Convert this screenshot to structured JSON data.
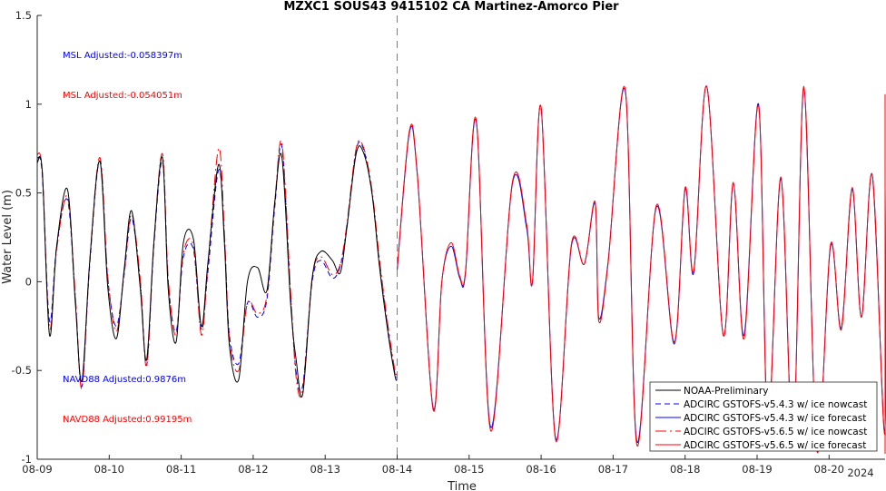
{
  "chart_data": {
    "type": "line",
    "title": "MZXC1 SOUS43 9415102 CA Martinez-Amorco Pier",
    "xlabel": "Time",
    "ylabel": "Water Level (m)",
    "year_label": "2024",
    "xlim": [
      "08-09",
      "08-20 +0.9 day"
    ],
    "ylim": [
      -1,
      1.5
    ],
    "x_ticks": [
      "08-09",
      "08-10",
      "08-11",
      "08-12",
      "08-13",
      "08-14",
      "08-15",
      "08-16",
      "08-17",
      "08-18",
      "08-19",
      "08-20"
    ],
    "y_ticks": [
      "-1",
      "-0.5",
      "0",
      "0.5",
      "1",
      "1.5"
    ],
    "nowcast_forecast_boundary": "08-14",
    "annotations": [
      {
        "text": "MSL Adjusted:-0.058397m",
        "color": "#0000ff"
      },
      {
        "text": "MSL Adjusted:-0.054051m",
        "color": "#ff0000"
      },
      {
        "text": "NAVD88 Adjusted:0.9876m",
        "color": "#0000ff"
      },
      {
        "text": "NAVD88 Adjusted:0.99195m",
        "color": "#ff0000"
      }
    ],
    "legend_placement": "bottom-right",
    "series": [
      {
        "name": "NOAA-Preliminary",
        "color": "#000000",
        "dash": "solid",
        "days": [
          0.0,
          0.07,
          0.17,
          0.27,
          0.42,
          0.53,
          0.62,
          0.73,
          0.87,
          0.98,
          1.1,
          1.21,
          1.31,
          1.43,
          1.52,
          1.62,
          1.74,
          1.82,
          1.93,
          2.03,
          2.17,
          2.28,
          2.37,
          2.52,
          2.6,
          2.67,
          2.8,
          2.92,
          3.06,
          3.19,
          3.3,
          3.4,
          3.52,
          3.6,
          3.69,
          3.82,
          3.94,
          4.1,
          4.21,
          4.3,
          4.43,
          4.53,
          4.65,
          4.75,
          4.87,
          4.97,
          5.0
        ],
        "values": [
          0.67,
          0.62,
          -0.3,
          0.2,
          0.52,
          -0.12,
          -0.56,
          0.12,
          0.68,
          -0.03,
          -0.32,
          0.08,
          0.4,
          -0.03,
          -0.44,
          0.22,
          0.7,
          -0.04,
          -0.34,
          0.22,
          0.24,
          -0.25,
          0.1,
          0.66,
          0.22,
          -0.36,
          -0.55,
          0.0,
          0.08,
          -0.05,
          0.45,
          0.7,
          -0.12,
          -0.45,
          -0.63,
          0.02,
          0.17,
          0.12,
          0.05,
          0.3,
          0.72,
          0.73,
          0.5,
          0.1,
          -0.28,
          -0.53,
          -0.55
        ]
      },
      {
        "name": "ADCIRC GSTOFS-v5.4.3 w/ ice nowcast",
        "color": "#0000ff",
        "dash": "6 4",
        "days": [
          0.0,
          0.07,
          0.17,
          0.27,
          0.42,
          0.53,
          0.62,
          0.73,
          0.87,
          0.98,
          1.1,
          1.21,
          1.31,
          1.43,
          1.52,
          1.62,
          1.74,
          1.82,
          1.93,
          2.03,
          2.17,
          2.28,
          2.37,
          2.52,
          2.6,
          2.67,
          2.8,
          2.92,
          3.06,
          3.19,
          3.3,
          3.4,
          3.52,
          3.6,
          3.69,
          3.82,
          3.94,
          4.1,
          4.21,
          4.3,
          4.43,
          4.53,
          4.65,
          4.75,
          4.87,
          4.97,
          5.0
        ],
        "values": [
          0.7,
          0.6,
          -0.22,
          0.2,
          0.46,
          -0.1,
          -0.59,
          0.1,
          0.68,
          0.02,
          -0.25,
          0.05,
          0.36,
          0.0,
          -0.47,
          0.2,
          0.68,
          0.0,
          -0.28,
          0.14,
          0.18,
          -0.27,
          0.05,
          0.63,
          0.25,
          -0.3,
          -0.46,
          -0.12,
          -0.2,
          -0.1,
          0.42,
          0.76,
          -0.08,
          -0.52,
          -0.58,
          0.0,
          0.12,
          0.02,
          0.09,
          0.3,
          0.74,
          0.75,
          0.5,
          0.12,
          -0.26,
          -0.52,
          -0.53
        ]
      },
      {
        "name": "ADCIRC GSTOFS-v5.4.3 w/ ice forecast",
        "color": "#0000ff",
        "dash": "solid",
        "days": [
          5.0,
          5.17,
          5.28,
          5.5,
          5.62,
          5.75,
          5.87,
          5.95,
          6.1,
          6.3,
          6.6,
          6.8,
          6.88,
          7.0,
          7.2,
          7.42,
          7.6,
          7.75,
          7.8,
          7.93,
          8.17,
          8.33,
          8.6,
          8.85,
          9.0,
          9.12,
          9.3,
          9.53,
          9.67,
          9.82,
          10.02,
          10.15,
          10.33,
          10.5,
          10.65,
          10.83,
          11.02,
          11.17,
          11.32,
          11.45,
          11.6,
          11.77,
          11.92,
          12.1,
          12.2,
          12.4,
          12.45
        ],
        "values": [
          0.06,
          0.84,
          0.6,
          -0.71,
          0.0,
          0.2,
          0.02,
          0.05,
          0.9,
          -0.82,
          0.55,
          0.3,
          0.0,
          0.98,
          -0.88,
          0.2,
          0.1,
          0.44,
          -0.2,
          0.11,
          1.07,
          -0.9,
          0.42,
          -0.35,
          0.52,
          0.05,
          1.1,
          -0.3,
          0.55,
          -0.3,
          1.0,
          -0.8,
          0.58,
          -0.9,
          1.09,
          -0.94,
          0.2,
          -0.26,
          0.52,
          -0.2,
          0.6,
          -0.85,
          0.55,
          -0.38,
          1.04,
          -0.88,
          -0.5
        ]
      },
      {
        "name": "ADCIRC GSTOFS-v5.6.5 w/ ice nowcast",
        "color": "#ff0000",
        "dash": "12 4 2 4",
        "days": [
          0.0,
          0.07,
          0.17,
          0.27,
          0.42,
          0.53,
          0.62,
          0.73,
          0.87,
          0.98,
          1.1,
          1.21,
          1.31,
          1.43,
          1.52,
          1.62,
          1.74,
          1.82,
          1.93,
          2.03,
          2.17,
          2.28,
          2.37,
          2.52,
          2.6,
          2.67,
          2.8,
          2.92,
          3.06,
          3.19,
          3.3,
          3.4,
          3.52,
          3.6,
          3.69,
          3.82,
          3.94,
          4.1,
          4.21,
          4.3,
          4.43,
          4.53,
          4.65,
          4.75,
          4.87,
          4.97,
          5.0
        ],
        "values": [
          0.72,
          0.62,
          -0.26,
          0.18,
          0.48,
          -0.08,
          -0.6,
          0.12,
          0.7,
          0.03,
          -0.28,
          0.06,
          0.38,
          0.02,
          -0.48,
          0.22,
          0.72,
          0.02,
          -0.3,
          0.16,
          0.2,
          -0.3,
          0.08,
          0.75,
          0.28,
          -0.32,
          -0.5,
          -0.12,
          -0.18,
          -0.08,
          0.45,
          0.78,
          -0.06,
          -0.55,
          -0.6,
          0.02,
          0.14,
          0.04,
          0.1,
          0.32,
          0.75,
          0.76,
          0.52,
          0.14,
          -0.24,
          -0.5,
          -0.51
        ]
      },
      {
        "name": "ADCIRC GSTOFS-v5.6.5 w/ ice forecast",
        "color": "#ff0000",
        "dash": "solid",
        "days": [
          5.0,
          5.17,
          5.28,
          5.5,
          5.62,
          5.75,
          5.87,
          5.95,
          6.1,
          6.3,
          6.6,
          6.8,
          6.88,
          7.0,
          7.2,
          7.42,
          7.6,
          7.75,
          7.8,
          7.93,
          8.17,
          8.33,
          8.6,
          8.85,
          9.0,
          9.12,
          9.3,
          9.53,
          9.67,
          9.82,
          10.02,
          10.15,
          10.33,
          10.5,
          10.65,
          10.83,
          11.02,
          11.17,
          11.32,
          11.45,
          11.6,
          11.77,
          11.92,
          12.1,
          12.2,
          12.4,
          12.45
        ],
        "values": [
          0.07,
          0.85,
          0.61,
          -0.72,
          0.0,
          0.22,
          0.03,
          0.06,
          0.91,
          -0.84,
          0.56,
          0.32,
          0.0,
          0.98,
          -0.89,
          0.21,
          0.1,
          0.45,
          -0.22,
          0.1,
          1.08,
          -0.92,
          0.43,
          -0.34,
          0.53,
          0.06,
          1.1,
          -0.3,
          0.56,
          -0.32,
          0.99,
          -0.82,
          0.59,
          -0.9,
          1.1,
          -0.95,
          0.21,
          -0.27,
          0.53,
          -0.2,
          0.6,
          -0.86,
          0.56,
          -0.38,
          1.05,
          -0.9,
          -0.52
        ]
      }
    ]
  }
}
